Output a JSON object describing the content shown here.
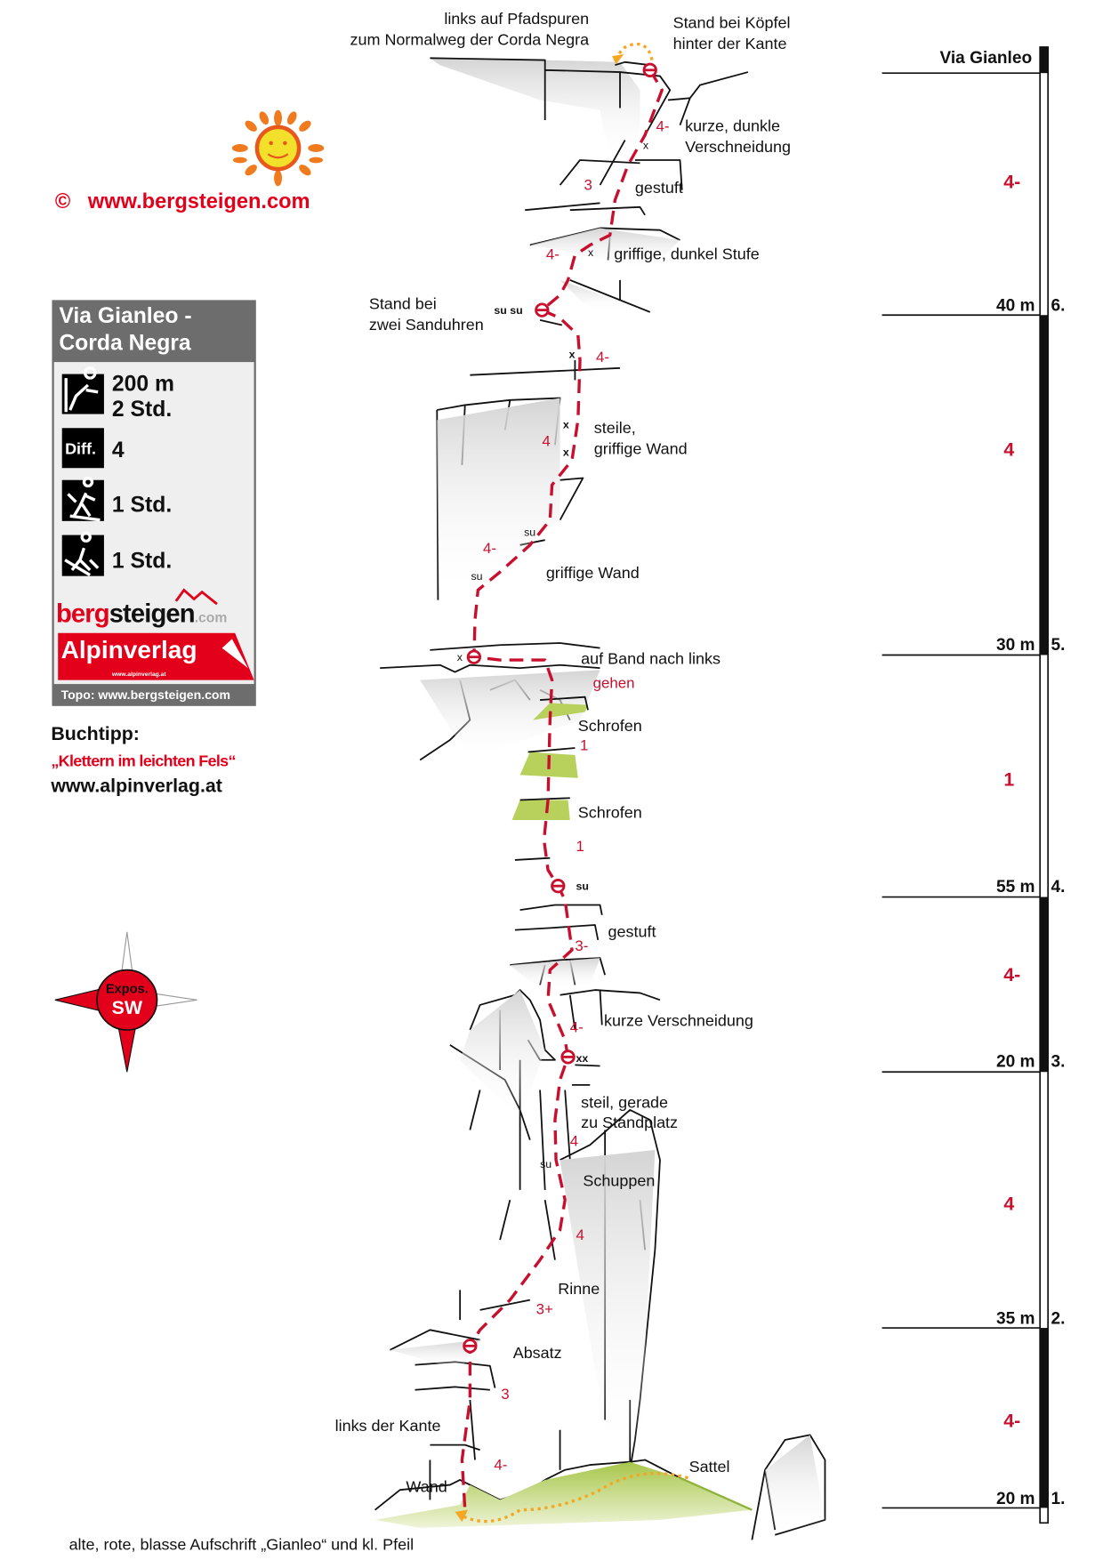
{
  "colors": {
    "route": "#c8102e",
    "text": "#111111",
    "info_header": "#6d6d6d",
    "info_bg": "#efefef",
    "grass": "#a8c64a",
    "approach": "#f5a623"
  },
  "branding": {
    "copyright_symbol": "©",
    "website": "www.bergsteigen.com",
    "sun_icon": "sun-logo-icon"
  },
  "info_box": {
    "title_line1": "Via Gianleo -",
    "title_line2": "Corda Negra",
    "length": "200 m",
    "climb_time": "2 Std.",
    "difficulty_label": "Diff.",
    "difficulty": "4",
    "approach_time": "1 Std.",
    "descent_time": "1 Std.",
    "logo_bergsteigen_red": "berg",
    "logo_bergsteigen_black": "steigen",
    "logo_bergsteigen_suffix": ".com",
    "logo_alpinverlag": "Alpinverlag",
    "logo_alpinverlag_url": "www.alpinverlag.at",
    "footer": "Topo: www.bergsteigen.com"
  },
  "book_tip": {
    "heading": "Buchtipp:",
    "title": "„Klettern im leichten Fels“",
    "url": "www.alpinverlag.at"
  },
  "compass": {
    "label": "Expos.",
    "direction": "SW"
  },
  "scale": {
    "title": "Via Gianleo",
    "pitches": [
      {
        "number": "6.",
        "length": "40 m",
        "grade": "4-"
      },
      {
        "number": "5.",
        "length": "30 m",
        "grade": "4"
      },
      {
        "number": "4.",
        "length": "55 m",
        "grade": "1"
      },
      {
        "number": "3.",
        "length": "20 m",
        "grade": "4-"
      },
      {
        "number": "2.",
        "length": "35 m",
        "grade": "4"
      },
      {
        "number": "1.",
        "length": "20 m",
        "grade": "4-"
      }
    ]
  },
  "annotations": {
    "exit1": "links auf Pfadspuren",
    "exit2": "zum Normalweg der Corda Negra",
    "top_belay1": "Stand bei Köpfel",
    "top_belay2": "hinter der Kante",
    "dihedral1": "kurze, dunkle",
    "dihedral2": "Verschneidung",
    "gestuft_top": "gestuft",
    "step": "griffige, dunkel Stufe",
    "belay5_1": "Stand bei",
    "belay5_2": "zwei Sanduhren",
    "susu": "su su",
    "wall1": "steile,",
    "wall2": "griffige Wand",
    "wall3": "griffige Wand",
    "band1": "auf Band nach links",
    "band2": "gehen",
    "schrofen1": "Schrofen",
    "schrofen2": "Schrofen",
    "belay3_mark": "su",
    "gestuft_mid": "gestuft",
    "short_dihedral": "kurze Verschneidung",
    "belay2_mark": "xx",
    "steep1": "steil, gerade",
    "steep2": "zu Standplatz",
    "schuppen": "Schuppen",
    "rinne": "Rinne",
    "absatz": "Absatz",
    "left_edge": "links der Kante",
    "wand": "Wand",
    "sattel": "Sattel",
    "start_note": "alte, rote, blasse Aufschrift „Gianleo“ und kl. Pfeil",
    "su": "su",
    "x": "x"
  },
  "route_grades": [
    "4-",
    "3",
    "4-",
    "4-",
    "4",
    "4-",
    "1",
    "1",
    "3-",
    "4-",
    "4",
    "4",
    "3+",
    "3",
    "4-"
  ]
}
